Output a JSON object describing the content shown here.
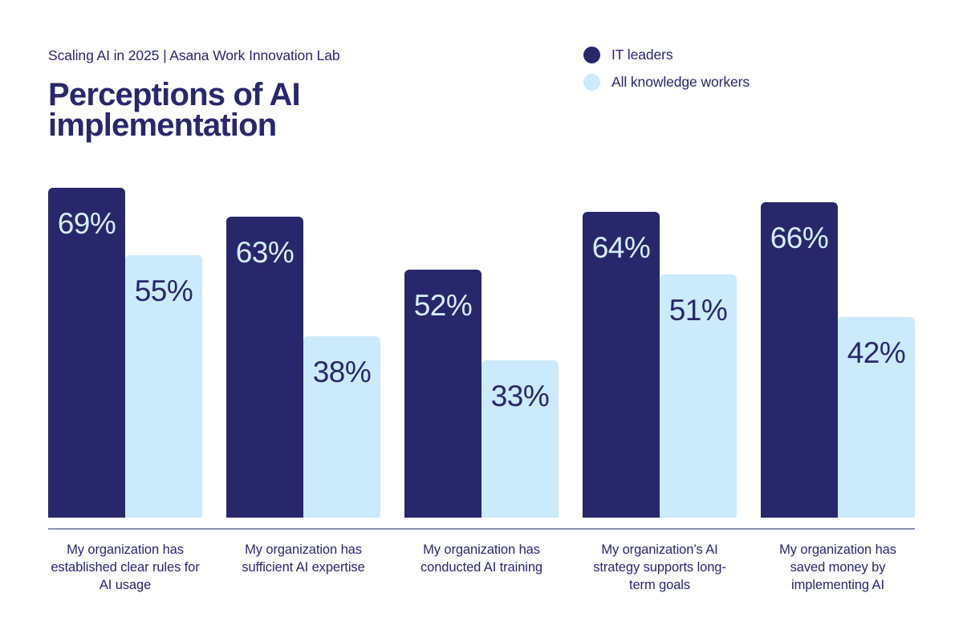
{
  "header": {
    "eyebrow": "Scaling AI in 2025 | Asana Work Innovation Lab",
    "title": "Perceptions of AI implementation"
  },
  "legend": {
    "items": [
      {
        "label": "IT leaders",
        "color": "#29276C"
      },
      {
        "label": "All knowledge workers",
        "color": "#CBEAFB"
      }
    ]
  },
  "colors": {
    "navy": "#29276C",
    "light_blue": "#CBEAFB",
    "value_label_on_navy": "#D5EFFD",
    "axis_line": "#8C92B6",
    "background": "#FFFFFF"
  },
  "chart_data": {
    "type": "bar",
    "title": "Perceptions of AI implementation",
    "subtitle": "Scaling AI in 2025 | Asana Work Innovation Lab",
    "categories": [
      "My organization has established clear rules for AI usage",
      "My organization has sufficient AI expertise",
      "My organization has conducted AI training",
      "My organization’s AI strategy supports long-term goals",
      "My organization has saved money by implementing AI"
    ],
    "series": [
      {
        "name": "IT leaders",
        "color": "#29276C",
        "values": [
          69,
          63,
          52,
          64,
          66
        ]
      },
      {
        "name": "All knowledge workers",
        "color": "#CBEAFB",
        "values": [
          55,
          38,
          33,
          51,
          42
        ]
      }
    ],
    "value_suffix": "%",
    "value_labels": "inside-top-centered",
    "ylim": [
      0,
      100
    ],
    "grid": false,
    "legend_position": "top-right"
  }
}
